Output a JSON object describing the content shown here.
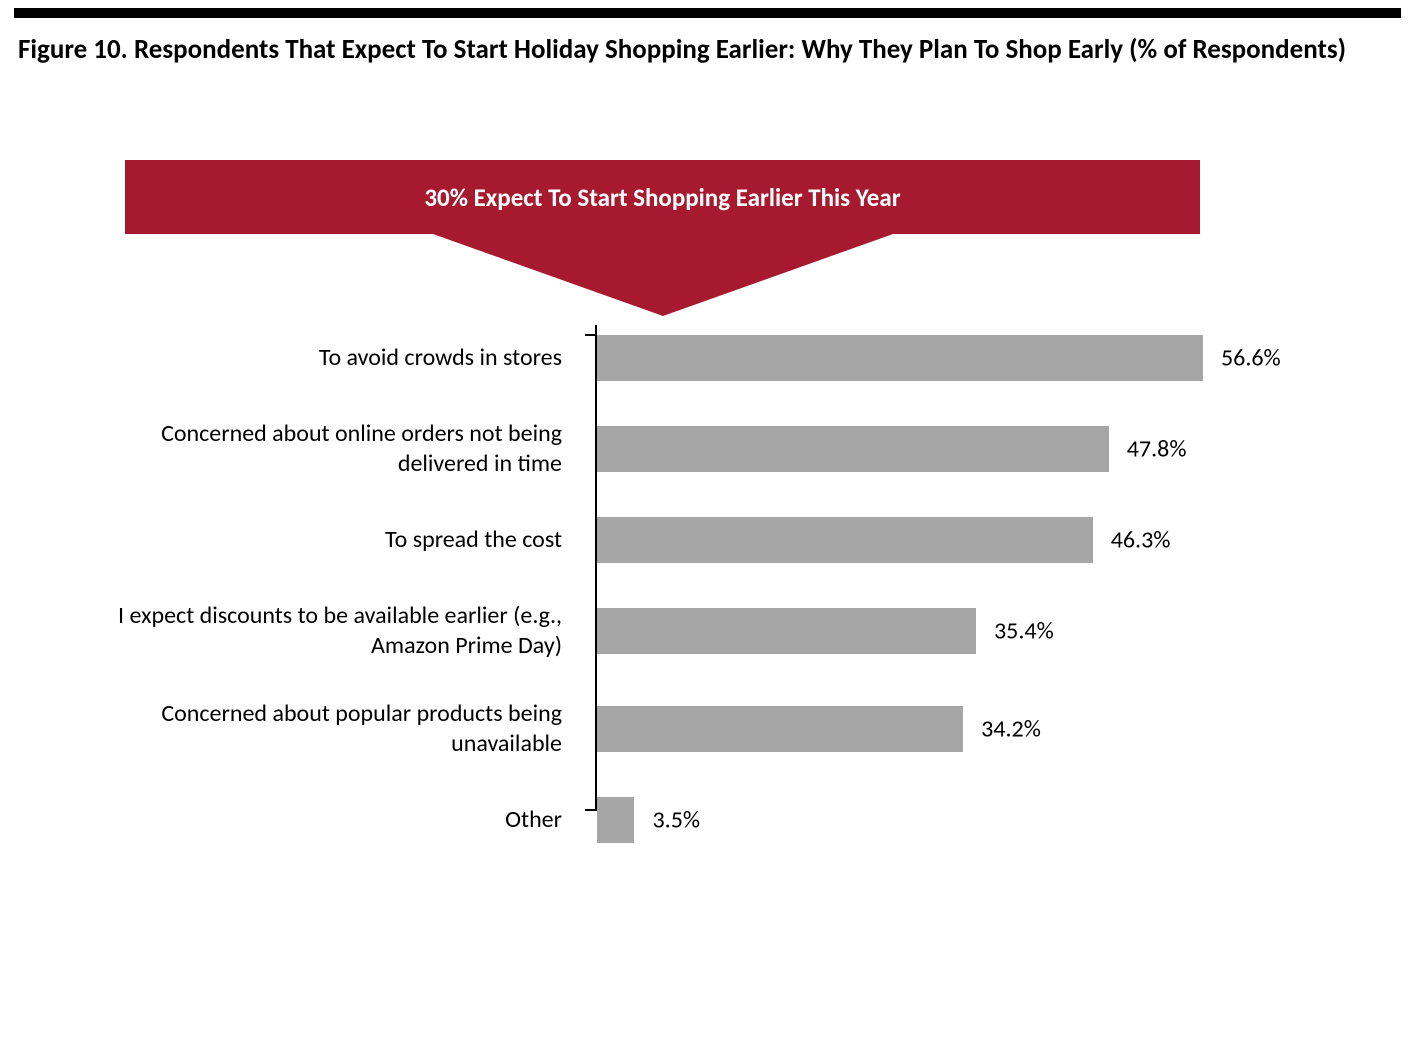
{
  "title": "Figure 10. Respondents That Expect To Start Holiday Shopping Earlier: Why They Plan To Shop Early (% of Respondents)",
  "title_fontsize": 27,
  "banner": {
    "text": "30% Expect To Start Shopping Earlier This Year",
    "bg_color": "#a6192e",
    "text_color": "#ffffff",
    "fontsize": 25
  },
  "chart": {
    "type": "bar-horizontal",
    "bar_color": "#a6a6a6",
    "axis_color": "#000000",
    "label_color": "#000000",
    "value_color": "#000000",
    "label_fontsize": 24,
    "value_fontsize": 24,
    "xmax": 60,
    "categories": [
      "To avoid crowds in stores",
      "Concerned about online orders not being delivered in time",
      "To spread the cost",
      "I expect discounts to be available earlier (e.g., Amazon Prime Day)",
      "Concerned about popular products being unavailable",
      "Other"
    ],
    "values": [
      56.6,
      47.8,
      46.3,
      35.4,
      34.2,
      3.5
    ],
    "value_labels": [
      "56.6%",
      "47.8%",
      "46.3%",
      "35.4%",
      "34.2%",
      "3.5%"
    ],
    "background_color": "#ffffff"
  }
}
